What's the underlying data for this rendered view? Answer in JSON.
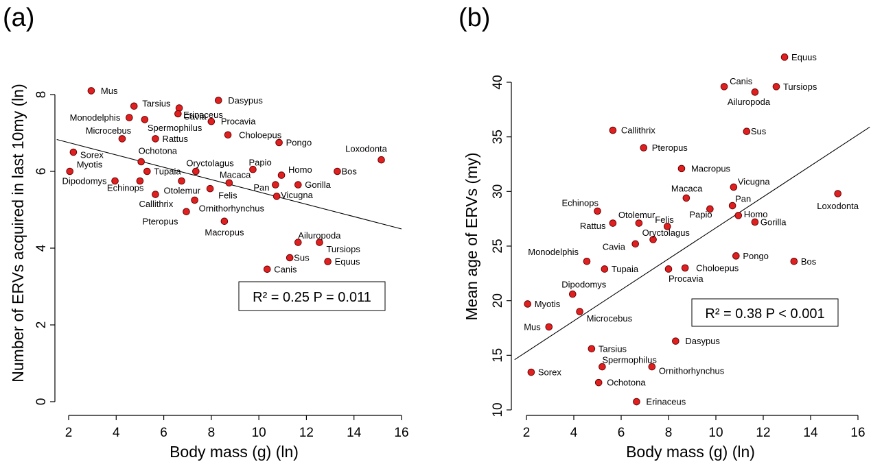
{
  "chart_data": [
    {
      "panel": "(a)",
      "type": "scatter",
      "xlabel": "Body mass (g)  (ln)",
      "ylabel": "Number of ERVs acquired in last 10my (ln)",
      "xlim": [
        1.5,
        16.5
      ],
      "ylim": [
        -0.2,
        9.0
      ],
      "xticks": [
        2,
        4,
        6,
        8,
        10,
        12,
        14,
        16
      ],
      "yticks": [
        0,
        2,
        4,
        6,
        8
      ],
      "grid": false,
      "stat": "R² = 0.25 P = 0.011",
      "trend_line": {
        "x": [
          1.5,
          16.0
        ],
        "y": [
          6.83,
          4.5
        ]
      },
      "points": [
        {
          "label": "Mus",
          "x": 2.95,
          "y": 8.1
        },
        {
          "label": "Tarsius",
          "x": 4.75,
          "y": 7.7
        },
        {
          "label": "Dasypus",
          "x": 8.3,
          "y": 7.85
        },
        {
          "label": "Erinaceus",
          "x": 6.65,
          "y": 7.65
        },
        {
          "label": "Monodelphis",
          "x": 4.55,
          "y": 7.4
        },
        {
          "label": "Spermophilus",
          "x": 5.2,
          "y": 7.35
        },
        {
          "label": "Cavia",
          "x": 6.6,
          "y": 7.5
        },
        {
          "label": "Procavia",
          "x": 8.0,
          "y": 7.3
        },
        {
          "label": "Microcebus",
          "x": 4.25,
          "y": 6.85
        },
        {
          "label": "Rattus",
          "x": 5.65,
          "y": 6.85
        },
        {
          "label": "Choloepus",
          "x": 8.7,
          "y": 6.95
        },
        {
          "label": "Pongo",
          "x": 10.85,
          "y": 6.75
        },
        {
          "label": "Sorex",
          "x": 2.2,
          "y": 6.5
        },
        {
          "label": "Ochotona",
          "x": 5.05,
          "y": 6.25
        },
        {
          "label": "Loxodonta",
          "x": 15.15,
          "y": 6.3
        },
        {
          "label": "Myotis",
          "x": 2.05,
          "y": 6.0
        },
        {
          "label": "Tupaia",
          "x": 5.3,
          "y": 6.0
        },
        {
          "label": "Oryctolagus",
          "x": 7.35,
          "y": 6.0
        },
        {
          "label": "Papio",
          "x": 9.75,
          "y": 6.05
        },
        {
          "label": "Homo",
          "x": 10.95,
          "y": 5.9
        },
        {
          "label": "Bos",
          "x": 13.3,
          "y": 6.0
        },
        {
          "label": "Dipodomys",
          "x": 3.95,
          "y": 5.75
        },
        {
          "label": "Echinops",
          "x": 5.0,
          "y": 5.75
        },
        {
          "label": "Otolemur",
          "x": 6.75,
          "y": 5.75
        },
        {
          "label": "Macaca",
          "x": 8.75,
          "y": 5.7
        },
        {
          "label": "Pan",
          "x": 10.7,
          "y": 5.65
        },
        {
          "label": "Gorilla",
          "x": 11.65,
          "y": 5.65
        },
        {
          "label": "Felis",
          "x": 7.95,
          "y": 5.55
        },
        {
          "label": "Callithrix",
          "x": 5.65,
          "y": 5.4
        },
        {
          "label": "Vicugna",
          "x": 10.75,
          "y": 5.35
        },
        {
          "label": "Ornithorhynchus",
          "x": 7.3,
          "y": 5.25
        },
        {
          "label": "Pteropus",
          "x": 6.95,
          "y": 4.95
        },
        {
          "label": "Macropus",
          "x": 8.55,
          "y": 4.7
        },
        {
          "label": "Ailuropoda",
          "x": 11.65,
          "y": 4.15
        },
        {
          "label": "Tursiops",
          "x": 12.55,
          "y": 4.15
        },
        {
          "label": "Sus",
          "x": 11.3,
          "y": 3.75
        },
        {
          "label": "Equus",
          "x": 12.9,
          "y": 3.65
        },
        {
          "label": "Canis",
          "x": 10.35,
          "y": 3.45
        }
      ]
    },
    {
      "panel": "(b)",
      "type": "scatter",
      "xlabel": "Body mass (g)  (ln)",
      "ylabel": "Mean age of ERVs (my)",
      "xlim": [
        1.5,
        16.5
      ],
      "ylim": [
        9.8,
        42.5
      ],
      "xticks": [
        2,
        4,
        6,
        8,
        10,
        12,
        14,
        16
      ],
      "yticks": [
        10,
        15,
        20,
        25,
        30,
        35,
        40
      ],
      "grid": false,
      "stat": "R² = 0.38 P < 0.001",
      "trend_line": {
        "x": [
          1.5,
          16.5
        ],
        "y": [
          14.6,
          35.9
        ]
      },
      "points": [
        {
          "label": "Equus",
          "x": 12.9,
          "y": 42.3
        },
        {
          "label": "Canis",
          "x": 10.35,
          "y": 39.6
        },
        {
          "label": "Tursiops",
          "x": 12.55,
          "y": 39.6
        },
        {
          "label": "Ailuropoda",
          "x": 11.65,
          "y": 39.1
        },
        {
          "label": "Callithrix",
          "x": 5.65,
          "y": 35.6
        },
        {
          "label": "Sus",
          "x": 11.3,
          "y": 35.5
        },
        {
          "label": "Pteropus",
          "x": 6.95,
          "y": 34.0
        },
        {
          "label": "Macropus",
          "x": 8.55,
          "y": 32.1
        },
        {
          "label": "Vicugna",
          "x": 10.75,
          "y": 30.4
        },
        {
          "label": "Loxodonta",
          "x": 15.15,
          "y": 29.8
        },
        {
          "label": "Macaca",
          "x": 8.75,
          "y": 29.4
        },
        {
          "label": "Pan",
          "x": 10.7,
          "y": 28.7
        },
        {
          "label": "Papio",
          "x": 9.75,
          "y": 28.4
        },
        {
          "label": "Echinops",
          "x": 5.0,
          "y": 28.2
        },
        {
          "label": "Homo",
          "x": 10.95,
          "y": 27.8
        },
        {
          "label": "Gorilla",
          "x": 11.65,
          "y": 27.2
        },
        {
          "label": "Rattus",
          "x": 5.65,
          "y": 27.1
        },
        {
          "label": "Otolemur",
          "x": 6.75,
          "y": 27.1
        },
        {
          "label": "Felis",
          "x": 7.95,
          "y": 26.8
        },
        {
          "label": "Oryctolagus",
          "x": 7.35,
          "y": 25.6
        },
        {
          "label": "Cavia",
          "x": 6.6,
          "y": 25.2
        },
        {
          "label": "Monodelphis",
          "x": 4.55,
          "y": 23.6
        },
        {
          "label": "Pongo",
          "x": 10.85,
          "y": 24.1
        },
        {
          "label": "Bos",
          "x": 13.3,
          "y": 23.6
        },
        {
          "label": "Tupaia",
          "x": 5.3,
          "y": 22.9
        },
        {
          "label": "Procavia",
          "x": 8.0,
          "y": 22.9
        },
        {
          "label": "Choloepus",
          "x": 8.7,
          "y": 23.0
        },
        {
          "label": "Dipodomys",
          "x": 3.95,
          "y": 20.6
        },
        {
          "label": "Myotis",
          "x": 2.05,
          "y": 19.7
        },
        {
          "label": "Microcebus",
          "x": 4.25,
          "y": 19.0
        },
        {
          "label": "Mus",
          "x": 2.95,
          "y": 17.6
        },
        {
          "label": "Dasypus",
          "x": 8.3,
          "y": 16.3
        },
        {
          "label": "Tarsius",
          "x": 4.75,
          "y": 15.6
        },
        {
          "label": "Spermophilus",
          "x": 5.2,
          "y": 13.95
        },
        {
          "label": "Ornithorhynchus",
          "x": 7.3,
          "y": 13.95
        },
        {
          "label": "Sorex",
          "x": 2.2,
          "y": 13.45
        },
        {
          "label": "Ochotona",
          "x": 5.05,
          "y": 12.5
        },
        {
          "label": "Erinaceus",
          "x": 6.65,
          "y": 10.75
        }
      ]
    }
  ]
}
